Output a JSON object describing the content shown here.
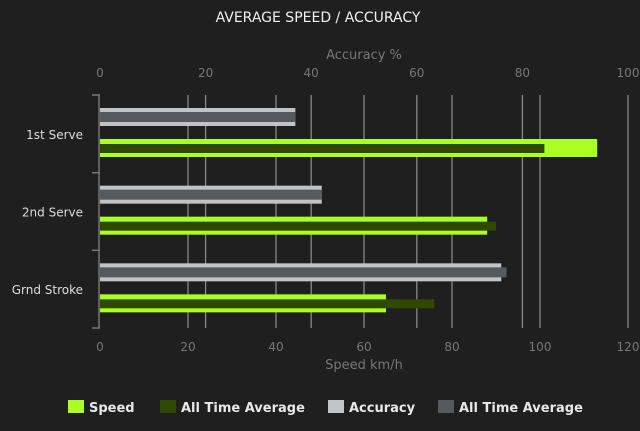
{
  "chart_data": {
    "type": "bar",
    "orientation": "horizontal",
    "title": "AVERAGE SPEED / ACCURACY",
    "categories": [
      "1st Serve",
      "2nd Serve",
      "Grnd Stroke"
    ],
    "x_top": {
      "label": "Accuracy %",
      "range": [
        0,
        100
      ],
      "ticks": [
        "0",
        "20",
        "40",
        "60",
        "80",
        "100"
      ]
    },
    "x_bottom": {
      "label": "Speed km/h",
      "range": [
        0,
        120
      ],
      "ticks": [
        "0",
        "20",
        "40",
        "60",
        "80",
        "100",
        "120"
      ]
    },
    "grid": true,
    "legend_position": "bottom",
    "series": [
      {
        "name": "Speed",
        "axis": "bottom",
        "color": "#aaff22",
        "values": [
          113,
          88,
          65
        ]
      },
      {
        "name": "All Time Average",
        "axis": "bottom",
        "color": "#2f4a00",
        "values": [
          101,
          90,
          76
        ]
      },
      {
        "name": "Accuracy",
        "axis": "top",
        "color": "#c0c4c6",
        "values": [
          37,
          42,
          76
        ]
      },
      {
        "name": "All Time Average",
        "axis": "top",
        "color": "#555a60",
        "values": [
          37,
          42,
          77
        ]
      }
    ]
  }
}
